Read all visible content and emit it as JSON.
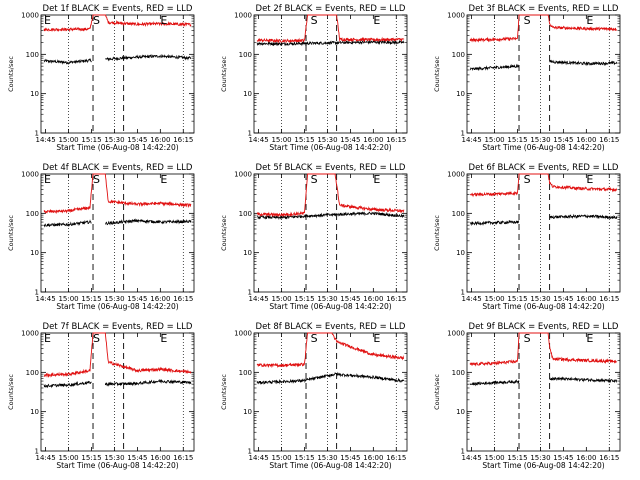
{
  "figure": {
    "ylabel": "Counts/sec",
    "xlabel": "Start Time (06-Aug-08 14:42:20)",
    "x_ticks": [
      "14:45",
      "15:00",
      "15:15",
      "15:30",
      "15:45",
      "16:00",
      "16:15"
    ],
    "y_ticks": [
      "1",
      "10",
      "100",
      "1000"
    ],
    "y_scale": "log",
    "marker_labels": {
      "E": "E",
      "S": "S"
    },
    "colors": {
      "events": "#000000",
      "lld": "#e01010",
      "axes": "#000000"
    }
  },
  "chart_data": [
    {
      "type": "line",
      "title": "Det 1f BLACK = Events, RED = LLD",
      "xlabel": "Start Time (06-Aug-08 14:42:20)",
      "ylabel": "Counts/sec",
      "ylim": [
        1,
        1000
      ],
      "xlim": [
        "14:42",
        "16:22"
      ],
      "dotted_lines_x": [
        "15:00",
        "15:30",
        "16:15"
      ],
      "dashed_lines_x": [
        "15:16",
        "15:36"
      ],
      "markers": [
        {
          "label": "E",
          "x": "14:44"
        },
        {
          "label": "S",
          "x": "15:16"
        },
        {
          "label": "E",
          "x": "16:00"
        }
      ],
      "gap": [
        "15:15",
        "15:24"
      ],
      "series": [
        {
          "name": "BLACK = Events",
          "x": [
            "14:44",
            "15:00",
            "15:14",
            "15:24",
            "15:45",
            "16:00",
            "16:20"
          ],
          "values": [
            68,
            62,
            70,
            75,
            85,
            90,
            80
          ]
        },
        {
          "name": "RED = LLD",
          "x": [
            "14:44",
            "15:00",
            "15:14",
            "15:16",
            "15:24",
            "15:26",
            "15:45",
            "16:00",
            "16:20"
          ],
          "values": [
            430,
            430,
            440,
            1000,
            1000,
            650,
            580,
            600,
            570
          ]
        }
      ]
    },
    {
      "type": "line",
      "title": "Det 2f BLACK = Events, RED = LLD",
      "xlabel": "Start Time (06-Aug-08 14:42:20)",
      "ylabel": "Counts/sec",
      "ylim": [
        1,
        1000
      ],
      "xlim": [
        "14:42",
        "16:22"
      ],
      "dotted_lines_x": [
        "15:00",
        "15:30",
        "16:15"
      ],
      "dashed_lines_x": [
        "15:16",
        "15:36"
      ],
      "markers": [
        {
          "label": "S",
          "x": "15:19"
        },
        {
          "label": "E",
          "x": "16:00"
        }
      ],
      "series": [
        {
          "name": "BLACK = Events",
          "x": [
            "14:44",
            "15:00",
            "15:15",
            "15:45",
            "16:00",
            "16:20"
          ],
          "values": [
            190,
            185,
            190,
            200,
            205,
            200
          ]
        },
        {
          "name": "RED = LLD",
          "x": [
            "14:44",
            "15:00",
            "15:15",
            "15:17",
            "15:36",
            "15:38",
            "16:00",
            "16:20"
          ],
          "values": [
            230,
            220,
            225,
            1000,
            1000,
            240,
            235,
            240
          ]
        }
      ]
    },
    {
      "type": "line",
      "title": "Det 3f BLACK = Events, RED = LLD",
      "xlabel": "Start Time (06-Aug-08 14:42:20)",
      "ylabel": "Counts/sec",
      "ylim": [
        1,
        1000
      ],
      "xlim": [
        "14:42",
        "16:22"
      ],
      "dotted_lines_x": [
        "15:00",
        "15:30",
        "16:15"
      ],
      "dashed_lines_x": [
        "15:16",
        "15:36"
      ],
      "markers": [
        {
          "label": "S",
          "x": "15:19"
        },
        {
          "label": "E",
          "x": "16:00"
        }
      ],
      "gap": [
        "15:16",
        "15:36"
      ],
      "series": [
        {
          "name": "BLACK = Events",
          "x": [
            "14:44",
            "15:00",
            "15:15",
            "15:36",
            "16:00",
            "16:20"
          ],
          "values": [
            42,
            46,
            50,
            65,
            58,
            60
          ]
        },
        {
          "name": "RED = LLD",
          "x": [
            "14:44",
            "15:00",
            "15:15",
            "15:16",
            "15:35",
            "15:36",
            "15:38",
            "16:00",
            "16:20"
          ],
          "values": [
            230,
            240,
            250,
            1000,
            1000,
            600,
            480,
            450,
            440
          ]
        }
      ]
    },
    {
      "type": "line",
      "title": "Det 4f BLACK = Events, RED = LLD",
      "xlabel": "Start Time (06-Aug-08 14:42:20)",
      "ylabel": "Counts/sec",
      "ylim": [
        1,
        1000
      ],
      "xlim": [
        "14:42",
        "16:22"
      ],
      "dotted_lines_x": [
        "15:00",
        "15:30",
        "16:15"
      ],
      "dashed_lines_x": [
        "15:16",
        "15:36"
      ],
      "markers": [
        {
          "label": "E",
          "x": "14:44"
        },
        {
          "label": "S",
          "x": "15:16"
        },
        {
          "label": "E",
          "x": "16:00"
        }
      ],
      "gap": [
        "15:15",
        "15:24"
      ],
      "series": [
        {
          "name": "BLACK = Events",
          "x": [
            "14:44",
            "15:00",
            "15:14",
            "15:24",
            "15:45",
            "16:00",
            "16:20"
          ],
          "values": [
            50,
            52,
            60,
            55,
            65,
            60,
            62
          ]
        },
        {
          "name": "RED = LLD",
          "x": [
            "14:44",
            "15:00",
            "15:14",
            "15:16",
            "15:24",
            "15:26",
            "15:45",
            "16:00",
            "16:20"
          ],
          "values": [
            110,
            115,
            140,
            1000,
            1000,
            200,
            170,
            180,
            160
          ]
        }
      ]
    },
    {
      "type": "line",
      "title": "Det 5f BLACK = Events, RED = LLD",
      "xlabel": "Start Time (06-Aug-08 14:42:20)",
      "ylabel": "Counts/sec",
      "ylim": [
        1,
        1000
      ],
      "xlim": [
        "14:42",
        "16:22"
      ],
      "dotted_lines_x": [
        "15:00",
        "15:30",
        "16:15"
      ],
      "dashed_lines_x": [
        "15:16",
        "15:36"
      ],
      "markers": [
        {
          "label": "S",
          "x": "15:19"
        },
        {
          "label": "E",
          "x": "16:00"
        }
      ],
      "series": [
        {
          "name": "BLACK = Events",
          "x": [
            "14:44",
            "15:00",
            "15:15",
            "15:40",
            "16:00",
            "16:20"
          ],
          "values": [
            80,
            78,
            85,
            95,
            100,
            85
          ]
        },
        {
          "name": "RED = LLD",
          "x": [
            "14:44",
            "15:00",
            "15:15",
            "15:17",
            "15:35",
            "15:38",
            "16:00",
            "16:20"
          ],
          "values": [
            95,
            92,
            100,
            1000,
            1000,
            160,
            125,
            115
          ]
        }
      ]
    },
    {
      "type": "line",
      "title": "Det 6f BLACK = Events, RED = LLD",
      "xlabel": "Start Time (06-Aug-08 14:42:20)",
      "ylabel": "Counts/sec",
      "ylim": [
        1,
        1000
      ],
      "xlim": [
        "14:42",
        "16:22"
      ],
      "dotted_lines_x": [
        "15:00",
        "15:30",
        "16:15"
      ],
      "dashed_lines_x": [
        "15:16",
        "15:36"
      ],
      "markers": [
        {
          "label": "S",
          "x": "15:19"
        },
        {
          "label": "E",
          "x": "16:00"
        }
      ],
      "gap": [
        "15:16",
        "15:36"
      ],
      "series": [
        {
          "name": "BLACK = Events",
          "x": [
            "14:44",
            "15:00",
            "15:15",
            "15:36",
            "16:00",
            "16:20"
          ],
          "values": [
            55,
            58,
            60,
            80,
            85,
            78
          ]
        },
        {
          "name": "RED = LLD",
          "x": [
            "14:44",
            "15:00",
            "15:15",
            "15:16",
            "15:35",
            "15:36",
            "15:38",
            "16:00",
            "16:20"
          ],
          "values": [
            300,
            310,
            330,
            1000,
            1000,
            600,
            480,
            420,
            400
          ]
        }
      ]
    },
    {
      "type": "line",
      "title": "Det 7f BLACK = Events, RED = LLD",
      "xlabel": "Start Time (06-Aug-08 14:42:20)",
      "ylabel": "Counts/sec",
      "ylim": [
        1,
        1000
      ],
      "xlim": [
        "14:42",
        "16:22"
      ],
      "dotted_lines_x": [
        "15:00",
        "15:30",
        "16:15"
      ],
      "dashed_lines_x": [
        "15:16",
        "15:36"
      ],
      "markers": [
        {
          "label": "E",
          "x": "14:44"
        },
        {
          "label": "S",
          "x": "15:16"
        },
        {
          "label": "E",
          "x": "16:00"
        }
      ],
      "gap": [
        "15:15",
        "15:24"
      ],
      "series": [
        {
          "name": "BLACK = Events",
          "x": [
            "14:44",
            "15:00",
            "15:14",
            "15:24",
            "15:45",
            "16:00",
            "16:20"
          ],
          "values": [
            45,
            48,
            55,
            50,
            52,
            60,
            55
          ]
        },
        {
          "name": "RED = LLD",
          "x": [
            "14:44",
            "15:00",
            "15:14",
            "15:16",
            "15:24",
            "15:26",
            "15:45",
            "16:00",
            "16:20"
          ],
          "values": [
            85,
            90,
            110,
            1000,
            1000,
            180,
            110,
            120,
            100
          ]
        }
      ]
    },
    {
      "type": "line",
      "title": "Det 8f BLACK = Events, RED = LLD",
      "xlabel": "Start Time (06-Aug-08 14:42:20)",
      "ylabel": "Counts/sec",
      "ylim": [
        1,
        1000
      ],
      "xlim": [
        "14:42",
        "16:22"
      ],
      "dotted_lines_x": [
        "15:00",
        "15:30",
        "16:15"
      ],
      "dashed_lines_x": [
        "15:16",
        "15:36"
      ],
      "markers": [
        {
          "label": "S",
          "x": "15:19"
        },
        {
          "label": "E",
          "x": "16:00"
        }
      ],
      "series": [
        {
          "name": "BLACK = Events",
          "x": [
            "14:44",
            "15:00",
            "15:15",
            "15:35",
            "16:00",
            "16:20"
          ],
          "values": [
            55,
            58,
            62,
            90,
            75,
            60
          ]
        },
        {
          "name": "RED = LLD",
          "x": [
            "14:44",
            "15:00",
            "15:15",
            "15:17",
            "15:33",
            "15:36",
            "16:00",
            "16:20"
          ],
          "values": [
            155,
            150,
            160,
            1000,
            1000,
            600,
            280,
            230
          ]
        }
      ]
    },
    {
      "type": "line",
      "title": "Det 9f BLACK = Events, RED = LLD",
      "xlabel": "Start Time (06-Aug-08 14:42:20)",
      "ylabel": "Counts/sec",
      "ylim": [
        1,
        1000
      ],
      "xlim": [
        "14:42",
        "16:22"
      ],
      "dotted_lines_x": [
        "15:00",
        "15:30",
        "16:15"
      ],
      "dashed_lines_x": [
        "15:16",
        "15:36"
      ],
      "markers": [
        {
          "label": "S",
          "x": "15:19"
        },
        {
          "label": "E",
          "x": "16:00"
        }
      ],
      "gap": [
        "15:16",
        "15:36"
      ],
      "series": [
        {
          "name": "BLACK = Events",
          "x": [
            "14:44",
            "15:00",
            "15:15",
            "15:36",
            "16:00",
            "16:20"
          ],
          "values": [
            50,
            55,
            58,
            70,
            65,
            60
          ]
        },
        {
          "name": "RED = LLD",
          "x": [
            "14:44",
            "15:00",
            "15:15",
            "15:16",
            "15:35",
            "15:36",
            "15:38",
            "16:00",
            "16:20"
          ],
          "values": [
            160,
            170,
            190,
            1000,
            1000,
            450,
            220,
            200,
            190
          ]
        }
      ]
    }
  ]
}
